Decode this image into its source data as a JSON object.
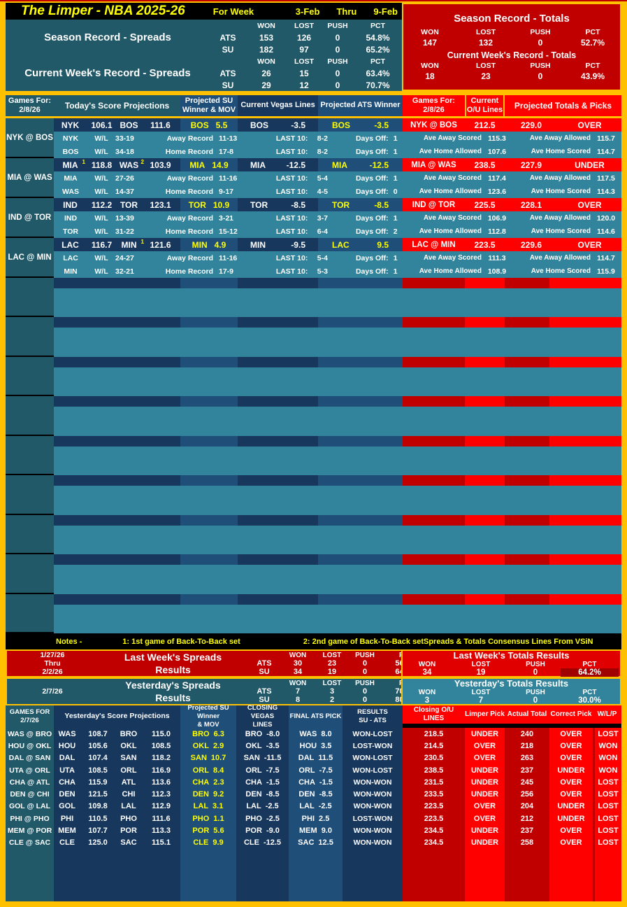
{
  "title_bar": {
    "title": "The Limper - NBA 2025-26",
    "for_week": "For Week",
    "week_start": "3-Feb",
    "thru": "Thru",
    "week_end": "9-Feb"
  },
  "rec_headers": {
    "won": "WON",
    "lost": "LOST",
    "push": "PUSH",
    "pct": "PCT"
  },
  "labels": {
    "ats": "ATS",
    "su": "SU",
    "wl": "W/L",
    "last10": "LAST 10:",
    "days_off": "Days Off:"
  },
  "season_spreads": {
    "title": "Season Record - Spreads",
    "ats": {
      "won": "153",
      "lost": "126",
      "push": "0",
      "pct": "54.8%"
    },
    "su": {
      "won": "182",
      "lost": "97",
      "push": "0",
      "pct": "65.2%"
    }
  },
  "current_week_spreads": {
    "title": "Current Week's Record - Spreads",
    "ats": {
      "won": "26",
      "lost": "15",
      "push": "0",
      "pct": "63.4%"
    },
    "su": {
      "won": "29",
      "lost": "12",
      "push": "0",
      "pct": "70.7%"
    }
  },
  "season_totals": {
    "title": "Season Record - Totals",
    "won": "147",
    "lost": "132",
    "push": "0",
    "pct": "52.7%"
  },
  "current_week_totals": {
    "title": "Current Week's Record - Totals",
    "won": "18",
    "lost": "23",
    "push": "0",
    "pct": "43.9%"
  },
  "main_table": {
    "header": {
      "games_for": "Games For:",
      "date": "2/8/26",
      "projections": "Today's Score Projections",
      "su1": "Projected SU",
      "su2": "Winner & MOV",
      "vegas": "Current Vegas Lines",
      "ats": "Projected ATS Winner",
      "games_for_right": "Games For:",
      "date_right": "2/8/26",
      "ou1": "Current",
      "ou2": "O/U Lines",
      "totals_picks": "Projected Totals & Picks"
    },
    "games": [
      {
        "label": "NYK @ BOS",
        "away": "NYK",
        "away_sup": "",
        "away_proj": "106.1",
        "home": "BOS",
        "home_sup": "",
        "home_proj": "111.6",
        "su_team": "BOS",
        "su_mov": "5.5",
        "vegas_team": "BOS",
        "vegas_line": "-3.5",
        "ats_team": "BOS",
        "ats_line": "-3.5",
        "matchup": "NYK @ BOS",
        "ou_line": "212.5",
        "proj_total": "229.0",
        "total_pick": "OVER",
        "away_row": {
          "team": "NYK",
          "wl": "33-19",
          "record_label": "Away Record",
          "record": "11-13",
          "last10": "8-2",
          "days_off": "1",
          "s1_label": "Ave Away Scored",
          "s1": "115.3",
          "s2_label": "Ave Away Allowed",
          "s2": "115.7"
        },
        "home_row": {
          "team": "BOS",
          "wl": "34-18",
          "record_label": "Home Record",
          "record": "17-8",
          "last10": "8-2",
          "days_off": "1",
          "s1_label": "Ave Home Allowed",
          "s1": "107.6",
          "s2_label": "Ave Home Scored",
          "s2": "114.7"
        }
      },
      {
        "label": "MIA @ WAS",
        "away": "MIA",
        "away_sup": "1",
        "away_proj": "118.8",
        "home": "WAS",
        "home_sup": "2",
        "home_proj": "103.9",
        "su_team": "MIA",
        "su_mov": "14.9",
        "vegas_team": "MIA",
        "vegas_line": "-12.5",
        "ats_team": "MIA",
        "ats_line": "-12.5",
        "matchup": "MIA @ WAS",
        "ou_line": "238.5",
        "proj_total": "227.9",
        "total_pick": "UNDER",
        "away_row": {
          "team": "MIA",
          "wl": "27-26",
          "record_label": "Away Record",
          "record": "11-16",
          "last10": "5-4",
          "days_off": "1",
          "s1_label": "Ave Away Scored",
          "s1": "117.4",
          "s2_label": "Ave Away Allowed",
          "s2": "117.5"
        },
        "home_row": {
          "team": "WAS",
          "wl": "14-37",
          "record_label": "Home Record",
          "record": "9-17",
          "last10": "4-5",
          "days_off": "0",
          "s1_label": "Ave Home Allowed",
          "s1": "123.6",
          "s2_label": "Ave Home Scored",
          "s2": "114.3"
        }
      },
      {
        "label": "IND @ TOR",
        "away": "IND",
        "away_sup": "",
        "away_proj": "112.2",
        "home": "TOR",
        "home_sup": "",
        "home_proj": "123.1",
        "su_team": "TOR",
        "su_mov": "10.9",
        "vegas_team": "TOR",
        "vegas_line": "-8.5",
        "ats_team": "TOR",
        "ats_line": "-8.5",
        "matchup": "IND @ TOR",
        "ou_line": "225.5",
        "proj_total": "228.1",
        "total_pick": "OVER",
        "away_row": {
          "team": "IND",
          "wl": "13-39",
          "record_label": "Away Record",
          "record": "3-21",
          "last10": "3-7",
          "days_off": "1",
          "s1_label": "Ave Away Scored",
          "s1": "106.9",
          "s2_label": "Ave Away Allowed",
          "s2": "120.0"
        },
        "home_row": {
          "team": "TOR",
          "wl": "31-22",
          "record_label": "Home Record",
          "record": "15-12",
          "last10": "6-4",
          "days_off": "2",
          "s1_label": "Ave Home Allowed",
          "s1": "112.8",
          "s2_label": "Ave Home Scored",
          "s2": "114.6"
        }
      },
      {
        "label": "LAC @ MIN",
        "away": "LAC",
        "away_sup": "",
        "away_proj": "116.7",
        "home": "MIN",
        "home_sup": "1",
        "home_proj": "121.6",
        "su_team": "MIN",
        "su_mov": "4.9",
        "vegas_team": "MIN",
        "vegas_line": "-9.5",
        "ats_team": "LAC",
        "ats_line": "9.5",
        "matchup": "LAC @ MIN",
        "ou_line": "223.5",
        "proj_total": "229.6",
        "total_pick": "OVER",
        "away_row": {
          "team": "LAC",
          "wl": "24-27",
          "record_label": "Away Record",
          "record": "11-16",
          "last10": "5-4",
          "days_off": "1",
          "s1_label": "Ave Away Scored",
          "s1": "111.3",
          "s2_label": "Ave Away Allowed",
          "s2": "114.7"
        },
        "home_row": {
          "team": "MIN",
          "wl": "32-21",
          "record_label": "Home Record",
          "record": "17-9",
          "last10": "5-3",
          "days_off": "1",
          "s1_label": "Ave Home Allowed",
          "s1": "108.9",
          "s2_label": "Ave Home Scored",
          "s2": "115.9"
        }
      }
    ]
  },
  "notes": {
    "label": "Notes -",
    "note1": "1: 1st game of Back-To-Back set",
    "note2": "2: 2nd game of Back-To-Back set",
    "source": "Spreads & Totals Consensus Lines From VSiN"
  },
  "last_week": {
    "date1": "1/27/26",
    "date2": "Thru",
    "date3": "2/2/26",
    "title1": "Last Week's Spreads",
    "title2": "Results",
    "ats": {
      "won": "30",
      "lost": "23",
      "push": "0",
      "pct": "56.6%"
    },
    "su": {
      "won": "34",
      "lost": "19",
      "push": "0",
      "pct": "64.2%"
    },
    "totals_title": "Last Week's Totals Results",
    "totals": {
      "won": "34",
      "lost": "19",
      "push": "0",
      "pct": "64.2%"
    }
  },
  "yesterday": {
    "date": "2/7/26",
    "title1": "Yesterday's Spreads",
    "title2": "Results",
    "ats": {
      "won": "7",
      "lost": "3",
      "push": "0",
      "pct": "70.0%"
    },
    "su": {
      "won": "8",
      "lost": "2",
      "push": "0",
      "pct": "80.0%"
    },
    "totals_title": "Yesterday's Totals Results",
    "totals": {
      "won": "3",
      "lost": "7",
      "push": "0",
      "pct": "30.0%"
    }
  },
  "bottom_table": {
    "header": {
      "games_for1": "GAMES FOR",
      "games_for2": "2/7/26",
      "projections": "Yesterday's Score Projections",
      "su1": "Projected SU Winner",
      "su2": "& MOV",
      "vegas1": "CLOSING VEGAS",
      "vegas2": "LINES",
      "ats": "FINAL ATS PICK",
      "results1": "RESULTS",
      "results2": "SU - ATS",
      "ou": "Closing O/U LINES",
      "limper": "Limper Pick",
      "actual": "Actual Total",
      "correct": "Correct Pick",
      "wlp": "W/L/P"
    },
    "rows": [
      {
        "label": "WAS @ BRO",
        "away": "WAS",
        "away_proj": "108.7",
        "home": "BRO",
        "home_proj": "115.0",
        "su_team": "BRO",
        "su_mov": "6.3",
        "vegas_team": "BRO",
        "vegas": "-8.0",
        "ats_team": "WAS",
        "ats": "8.0",
        "results": "WON-LOST",
        "ou": "218.5",
        "limper": "UNDER",
        "actual": "240",
        "correct": "OVER",
        "wlp": "LOST"
      },
      {
        "label": "HOU @ OKL",
        "away": "HOU",
        "away_proj": "105.6",
        "home": "OKL",
        "home_proj": "108.5",
        "su_team": "OKL",
        "su_mov": "2.9",
        "vegas_team": "OKL",
        "vegas": "-3.5",
        "ats_team": "HOU",
        "ats": "3.5",
        "results": "LOST-WON",
        "ou": "214.5",
        "limper": "OVER",
        "actual": "218",
        "correct": "OVER",
        "wlp": "WON"
      },
      {
        "label": "DAL @ SAN",
        "away": "DAL",
        "away_proj": "107.4",
        "home": "SAN",
        "home_proj": "118.2",
        "su_team": "SAN",
        "su_mov": "10.7",
        "vegas_team": "SAN",
        "vegas": "-11.5",
        "ats_team": "DAL",
        "ats": "11.5",
        "results": "WON-LOST",
        "ou": "230.5",
        "limper": "OVER",
        "actual": "263",
        "correct": "OVER",
        "wlp": "WON"
      },
      {
        "label": "UTA @ ORL",
        "away": "UTA",
        "away_proj": "108.5",
        "home": "ORL",
        "home_proj": "116.9",
        "su_team": "ORL",
        "su_mov": "8.4",
        "vegas_team": "ORL",
        "vegas": "-7.5",
        "ats_team": "ORL",
        "ats": "-7.5",
        "results": "WON-LOST",
        "ou": "238.5",
        "limper": "UNDER",
        "actual": "237",
        "correct": "UNDER",
        "wlp": "WON"
      },
      {
        "label": "CHA @ ATL",
        "away": "CHA",
        "away_proj": "115.9",
        "home": "ATL",
        "home_proj": "113.6",
        "su_team": "CHA",
        "su_mov": "2.3",
        "vegas_team": "CHA",
        "vegas": "-1.5",
        "ats_team": "CHA",
        "ats": "-1.5",
        "results": "WON-WON",
        "ou": "231.5",
        "limper": "UNDER",
        "actual": "245",
        "correct": "OVER",
        "wlp": "LOST"
      },
      {
        "label": "DEN @ CHI",
        "away": "DEN",
        "away_proj": "121.5",
        "home": "CHI",
        "home_proj": "112.3",
        "su_team": "DEN",
        "su_mov": "9.2",
        "vegas_team": "DEN",
        "vegas": "-8.5",
        "ats_team": "DEN",
        "ats": "-8.5",
        "results": "WON-WON",
        "ou": "233.5",
        "limper": "UNDER",
        "actual": "256",
        "correct": "OVER",
        "wlp": "LOST"
      },
      {
        "label": "GOL @ LAL",
        "away": "GOL",
        "away_proj": "109.8",
        "home": "LAL",
        "home_proj": "112.9",
        "su_team": "LAL",
        "su_mov": "3.1",
        "vegas_team": "LAL",
        "vegas": "-2.5",
        "ats_team": "LAL",
        "ats": "-2.5",
        "results": "WON-WON",
        "ou": "223.5",
        "limper": "OVER",
        "actual": "204",
        "correct": "UNDER",
        "wlp": "LOST"
      },
      {
        "label": "PHI @ PHO",
        "away": "PHI",
        "away_proj": "110.5",
        "home": "PHO",
        "home_proj": "111.6",
        "su_team": "PHO",
        "su_mov": "1.1",
        "vegas_team": "PHO",
        "vegas": "-2.5",
        "ats_team": "PHI",
        "ats": "2.5",
        "results": "LOST-WON",
        "ou": "223.5",
        "limper": "OVER",
        "actual": "212",
        "correct": "UNDER",
        "wlp": "LOST"
      },
      {
        "label": "MEM @ POR",
        "away": "MEM",
        "away_proj": "107.7",
        "home": "POR",
        "home_proj": "113.3",
        "su_team": "POR",
        "su_mov": "5.6",
        "vegas_team": "POR",
        "vegas": "-9.0",
        "ats_team": "MEM",
        "ats": "9.0",
        "results": "WON-WON",
        "ou": "234.5",
        "limper": "UNDER",
        "actual": "237",
        "correct": "OVER",
        "wlp": "LOST"
      },
      {
        "label": "CLE @ SAC",
        "away": "CLE",
        "away_proj": "125.0",
        "home": "SAC",
        "home_proj": "115.1",
        "su_team": "CLE",
        "su_mov": "9.9",
        "vegas_team": "CLE",
        "vegas": "-12.5",
        "ats_team": "SAC",
        "ats": "12.5",
        "results": "WON-WON",
        "ou": "234.5",
        "limper": "UNDER",
        "actual": "258",
        "correct": "OVER",
        "wlp": "LOST"
      }
    ]
  },
  "colors": {
    "frame_gold": "#FFC000",
    "dark_teal": "#215968",
    "steel_teal": "#31849B",
    "dark_navy": "#17375D",
    "medium_blue": "#1F4E79",
    "dark_red": "#C00000",
    "bright_red": "#FF0000",
    "highlight_yellow": "#FFFF00"
  }
}
